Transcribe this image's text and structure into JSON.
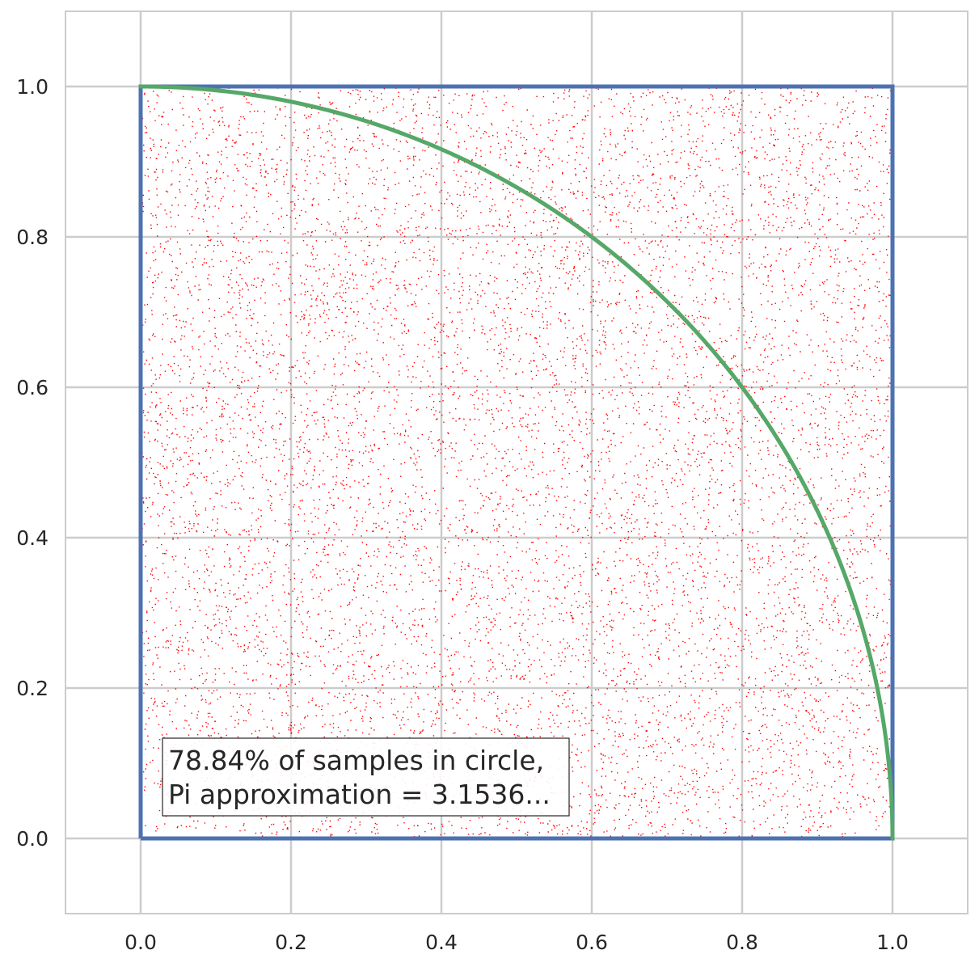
{
  "chart_data": {
    "type": "scatter",
    "title": "",
    "xlabel": "",
    "ylabel": "",
    "xlim": [
      -0.1,
      1.1
    ],
    "ylim": [
      -0.1,
      1.1
    ],
    "grid": true,
    "x_ticks": [
      "0.0",
      "0.2",
      "0.4",
      "0.6",
      "0.8",
      "1.0"
    ],
    "y_ticks": [
      "0.0",
      "0.2",
      "0.4",
      "0.6",
      "0.8",
      "1.0"
    ],
    "series": [
      {
        "kind": "scatter",
        "description": "uniform random samples in [0,1]x[0,1]",
        "x_range": [
          0,
          1
        ],
        "y_range": [
          0,
          1
        ],
        "color": "#ff0000"
      },
      {
        "kind": "line",
        "description": "unit square boundary",
        "x": [
          0,
          1,
          1,
          0,
          0
        ],
        "y": [
          0,
          0,
          1,
          1,
          0
        ],
        "color": "#4c72b0"
      },
      {
        "kind": "line",
        "description": "quarter circle x^2 + y^2 = 1",
        "x": [
          0,
          0.2,
          0.4,
          0.6,
          0.8,
          0.9,
          1.0
        ],
        "y": [
          1.0,
          0.98,
          0.9165,
          0.8,
          0.6,
          0.4359,
          0.0
        ],
        "color": "#55a868"
      }
    ],
    "annotation": {
      "line1": "78.84% of samples in circle,",
      "line2": "Pi approximation = 3.1536..."
    }
  },
  "colors": {
    "grid": "#cccccc",
    "square": "#4c72b0",
    "circle": "#55a868",
    "points": "#ff0000"
  }
}
